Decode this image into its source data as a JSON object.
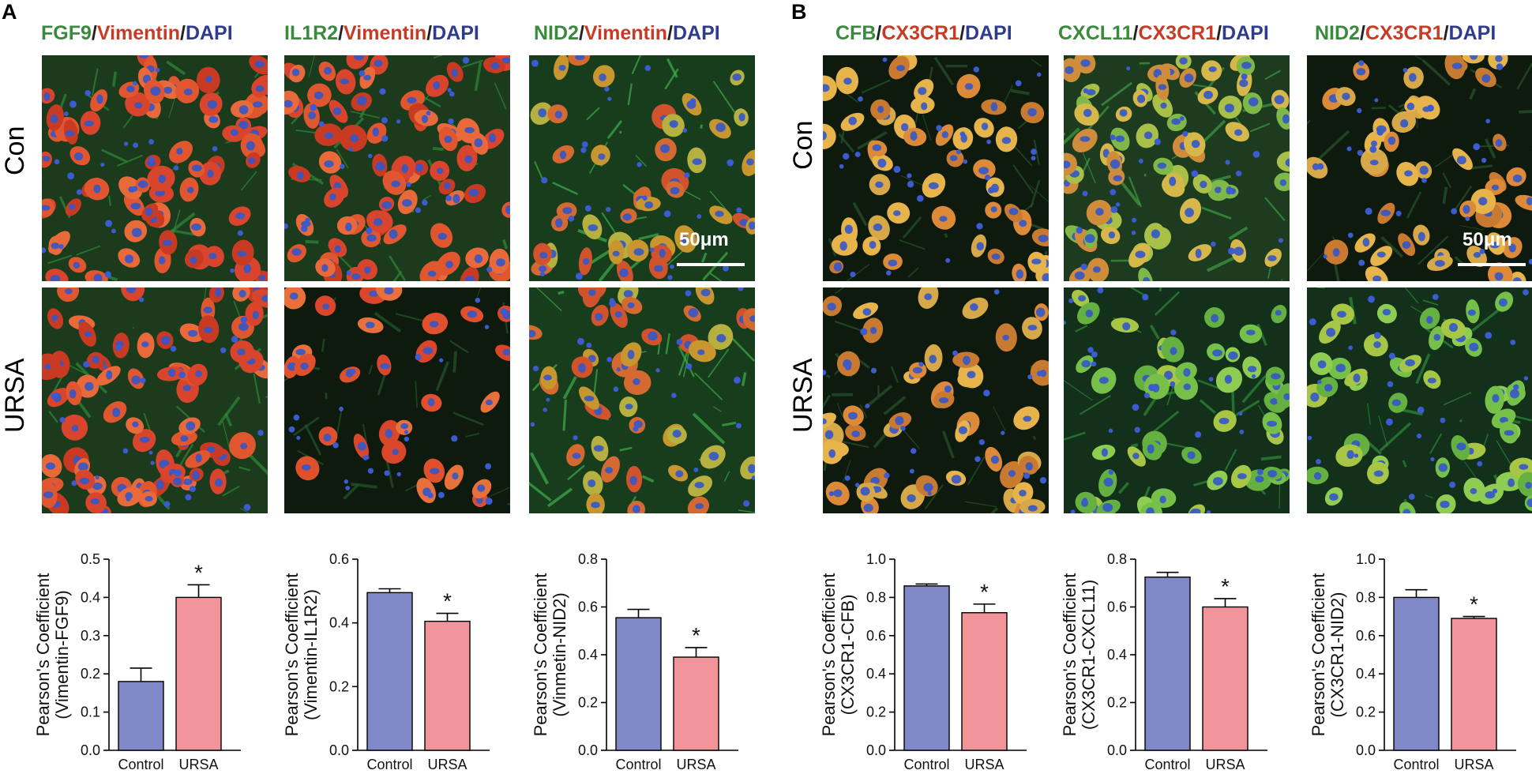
{
  "figure": {
    "panel_a": {
      "letter": "A",
      "row_labels": [
        "Con",
        "URSA"
      ],
      "scale_bar": "50μm",
      "columns": [
        {
          "parts": [
            {
              "text": "FGF9",
              "color": "green"
            },
            {
              "text": "/",
              "color": "black"
            },
            {
              "text": "Vimentin",
              "color": "red"
            },
            {
              "text": "/",
              "color": "black"
            },
            {
              "text": "DAPI",
              "color": "blue"
            }
          ]
        },
        {
          "parts": [
            {
              "text": "IL1R2",
              "color": "green"
            },
            {
              "text": "/",
              "color": "black"
            },
            {
              "text": "Vimentin",
              "color": "red"
            },
            {
              "text": "/",
              "color": "black"
            },
            {
              "text": "DAPI",
              "color": "blue"
            }
          ]
        },
        {
          "parts": [
            {
              "text": "NID2",
              "color": "green"
            },
            {
              "text": "/",
              "color": "black"
            },
            {
              "text": "Vimentin",
              "color": "red"
            },
            {
              "text": "/",
              "color": "black"
            },
            {
              "text": "DAPI",
              "color": "blue"
            }
          ]
        }
      ]
    },
    "panel_b": {
      "letter": "B",
      "row_labels": [
        "Con",
        "URSA"
      ],
      "scale_bar": "50μm",
      "columns": [
        {
          "parts": [
            {
              "text": "CFB",
              "color": "green"
            },
            {
              "text": "/",
              "color": "black"
            },
            {
              "text": "CX3CR1",
              "color": "red"
            },
            {
              "text": "/",
              "color": "black"
            },
            {
              "text": "DAPI",
              "color": "blue"
            }
          ]
        },
        {
          "parts": [
            {
              "text": "CXCL11",
              "color": "green"
            },
            {
              "text": "/",
              "color": "black"
            },
            {
              "text": "CX3CR1",
              "color": "red"
            },
            {
              "text": "/",
              "color": "black"
            },
            {
              "text": "DAPI",
              "color": "blue"
            }
          ]
        },
        {
          "parts": [
            {
              "text": "NID2",
              "color": "green"
            },
            {
              "text": "/",
              "color": "black"
            },
            {
              "text": "CX3CR1",
              "color": "red"
            },
            {
              "text": "/",
              "color": "black"
            },
            {
              "text": "DAPI",
              "color": "blue"
            }
          ]
        }
      ]
    },
    "colors": {
      "green": "#3a8a3e",
      "red": "#c93a25",
      "blue": "#2f3b8f",
      "black": "#222222",
      "bar_control": "#8088c8",
      "bar_ursa": "#f2959a"
    }
  },
  "chart_data": [
    {
      "type": "bar",
      "ylabel_line1": "Pearson's Coefficient",
      "ylabel_line2": "(Vimentin-FGF9)",
      "categories": [
        "Control",
        "URSA"
      ],
      "values": [
        0.18,
        0.4
      ],
      "errors": [
        0.035,
        0.033
      ],
      "ylim": [
        0,
        0.5
      ],
      "ticks": [
        "0.0",
        "0.1",
        "0.2",
        "0.3",
        "0.4",
        "0.5"
      ],
      "significance": "*"
    },
    {
      "type": "bar",
      "ylabel_line1": "Pearson's Coefficient",
      "ylabel_line2": "(Vimentin-IL1R2)",
      "categories": [
        "Control",
        "URSA"
      ],
      "values": [
        0.495,
        0.405
      ],
      "errors": [
        0.012,
        0.025
      ],
      "ylim": [
        0,
        0.6
      ],
      "ticks": [
        "0.0",
        "0.2",
        "0.4",
        "0.6"
      ],
      "significance": "*"
    },
    {
      "type": "bar",
      "ylabel_line1": "Pearson's Coefficient",
      "ylabel_line2": "(Vinmetin-NID2)",
      "categories": [
        "Control",
        "URSA"
      ],
      "values": [
        0.555,
        0.39
      ],
      "errors": [
        0.035,
        0.04
      ],
      "ylim": [
        0,
        0.8
      ],
      "ticks": [
        "0.0",
        "0.2",
        "0.4",
        "0.6",
        "0.8"
      ],
      "significance": "*"
    },
    {
      "type": "bar",
      "ylabel_line1": "Pearson's Coefficient",
      "ylabel_line2": "(CX3CR1-CFB)",
      "categories": [
        "Control",
        "URSA"
      ],
      "values": [
        0.86,
        0.72
      ],
      "errors": [
        0.01,
        0.045
      ],
      "ylim": [
        0,
        1.0
      ],
      "ticks": [
        "0.0",
        "0.2",
        "0.4",
        "0.6",
        "0.8",
        "1.0"
      ],
      "significance": "*"
    },
    {
      "type": "bar",
      "ylabel_line1": "Pearson's Coefficient",
      "ylabel_line2": "(CX3CR1-CXCL11)",
      "categories": [
        "Control",
        "URSA"
      ],
      "values": [
        0.725,
        0.6
      ],
      "errors": [
        0.02,
        0.035
      ],
      "ylim": [
        0,
        0.8
      ],
      "ticks": [
        "0.0",
        "0.2",
        "0.4",
        "0.6",
        "0.8"
      ],
      "significance": "*"
    },
    {
      "type": "bar",
      "ylabel_line1": "Pearson's Coefficient",
      "ylabel_line2": "(CX3CR1-NID2)",
      "categories": [
        "Control",
        "URSA"
      ],
      "values": [
        0.8,
        0.69
      ],
      "errors": [
        0.04,
        0.01
      ],
      "ylim": [
        0,
        1.0
      ],
      "ticks": [
        "0.0",
        "0.2",
        "0.4",
        "0.6",
        "0.8",
        "1.0"
      ],
      "significance": "*"
    }
  ]
}
